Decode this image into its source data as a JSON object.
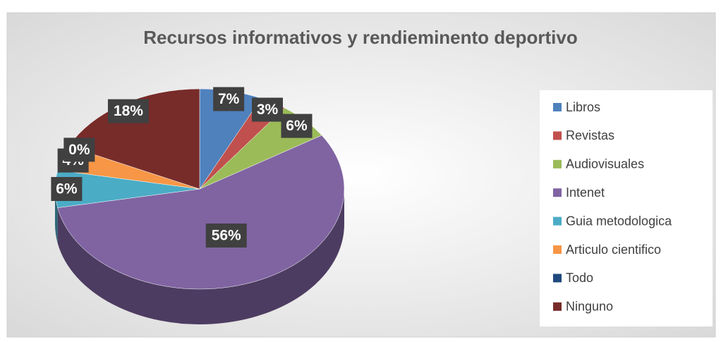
{
  "chart_data": {
    "type": "pie",
    "title": "Recursos informativos y rendieminento deportivo",
    "categories": [
      "Libros",
      "Revistas",
      "Audiovisuales",
      "Intenet",
      "Guia metodologica",
      "Articulo cientifico",
      "Todo",
      "Ninguno"
    ],
    "values": [
      7,
      3,
      6,
      56,
      6,
      4,
      0,
      18
    ],
    "value_labels": [
      "7%",
      "3%",
      "6%",
      "56%",
      "6%",
      "4%",
      "0%",
      "18%"
    ],
    "colors": [
      "#4f81bd",
      "#c0504d",
      "#9bbb59",
      "#8064a2",
      "#4bacc6",
      "#f79646",
      "#1f497d",
      "#772c2a"
    ],
    "legend": "right"
  }
}
